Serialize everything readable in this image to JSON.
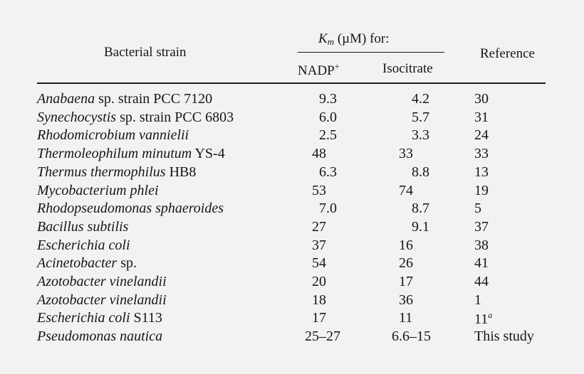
{
  "table": {
    "headers": {
      "strain": "Bacterial strain",
      "km_symbol": "K",
      "km_subscript": "m",
      "km_suffix": "(µM) for:",
      "nadp": "NADP",
      "nadp_sup": "+",
      "isocitrate": "Isocitrate",
      "reference": "Reference"
    },
    "rows": [
      {
        "strain_italic": "Anabaena",
        "strain_plain": " sp. strain PCC 7120",
        "nadp": "9.3",
        "iso": "4.2",
        "ref": "30",
        "ref_sup": ""
      },
      {
        "strain_italic": "Synechocystis",
        "strain_plain": " sp. strain PCC 6803",
        "nadp": "6.0",
        "iso": "5.7",
        "ref": "31",
        "ref_sup": ""
      },
      {
        "strain_italic": "Rhodomicrobium vannielii",
        "strain_plain": "",
        "nadp": "2.5",
        "iso": "3.3",
        "ref": "24",
        "ref_sup": ""
      },
      {
        "strain_italic": "Thermoleophilum minutum",
        "strain_plain": " YS-4",
        "nadp": "48",
        "iso": "33",
        "ref": "33",
        "ref_sup": ""
      },
      {
        "strain_italic": "Thermus thermophilus",
        "strain_plain": " HB8",
        "nadp": "6.3",
        "iso": "8.8",
        "ref": "13",
        "ref_sup": ""
      },
      {
        "strain_italic": "Mycobacterium phlei",
        "strain_plain": "",
        "nadp": "53",
        "iso": "74",
        "ref": "19",
        "ref_sup": ""
      },
      {
        "strain_italic": "Rhodopseudomonas sphaeroides",
        "strain_plain": "",
        "nadp": "7.0",
        "iso": "8.7",
        "ref": "5",
        "ref_sup": ""
      },
      {
        "strain_italic": "Bacillus subtilis",
        "strain_plain": "",
        "nadp": "27",
        "iso": "9.1",
        "ref": "37",
        "ref_sup": ""
      },
      {
        "strain_italic": "Escherichia coli",
        "strain_plain": "",
        "nadp": "37",
        "iso": "16",
        "ref": "38",
        "ref_sup": ""
      },
      {
        "strain_italic": "Acinetobacter",
        "strain_plain": " sp.",
        "nadp": "54",
        "iso": "26",
        "ref": "41",
        "ref_sup": ""
      },
      {
        "strain_italic": "Azotobacter vinelandii",
        "strain_plain": "",
        "nadp": "20",
        "iso": "17",
        "ref": "44",
        "ref_sup": ""
      },
      {
        "strain_italic": "Azotobacter vinelandii",
        "strain_plain": "",
        "nadp": "18",
        "iso": "36",
        "ref": "1",
        "ref_sup": ""
      },
      {
        "strain_italic": "Escherichia coli",
        "strain_plain": " S113",
        "nadp": "17",
        "iso": "11",
        "ref": "11",
        "ref_sup": "a"
      },
      {
        "strain_italic": "Pseudomonas nautica",
        "strain_plain": "",
        "nadp": "25–27",
        "iso": "6.6–15",
        "ref": "This study",
        "ref_sup": ""
      }
    ]
  }
}
